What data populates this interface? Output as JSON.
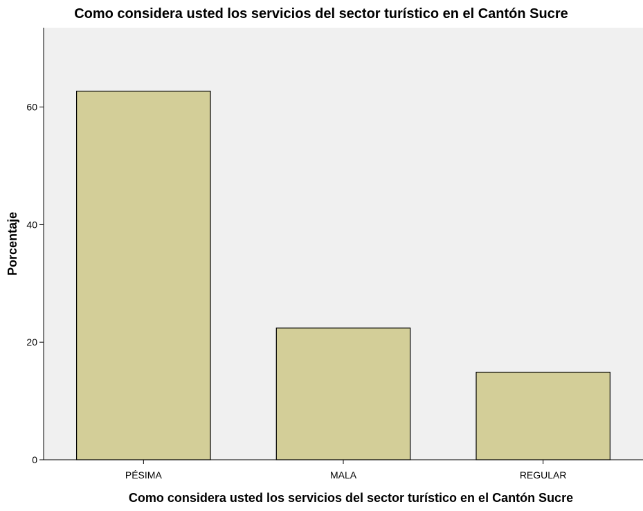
{
  "chart_data": {
    "type": "bar",
    "title": "Como considera usted los servicios del sector turístico en el Cantón Sucre",
    "xlabel": "Como considera usted los servicios del sector turístico en el Cantón Sucre",
    "ylabel": "Porcentaje",
    "categories": [
      "PÉSIMA",
      "MALA",
      "REGULAR"
    ],
    "values": [
      62.7,
      22.4,
      14.9
    ],
    "ylim": [
      0,
      73.5
    ],
    "yticks": [
      0,
      20,
      40,
      60
    ],
    "grid": false,
    "legend": "none",
    "colors": {
      "bar_fill": "#d3ce98",
      "bar_stroke": "#000000",
      "plot_background": "#f0f0f0",
      "axis": "#000000"
    }
  }
}
